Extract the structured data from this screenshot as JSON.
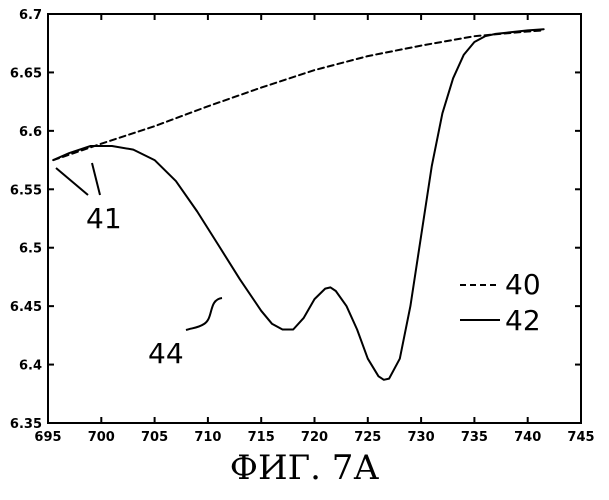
{
  "chart_data": {
    "type": "line",
    "title": "",
    "xlabel": "",
    "ylabel": "",
    "xlim": [
      695,
      745
    ],
    "ylim": [
      6.35,
      6.7
    ],
    "x_ticks": [
      695,
      700,
      705,
      710,
      715,
      720,
      725,
      730,
      735,
      740,
      745
    ],
    "y_ticks": [
      6.35,
      6.4,
      6.45,
      6.5,
      6.55,
      6.6,
      6.65,
      6.7
    ],
    "x_tick_labels": [
      "695",
      "700",
      "705",
      "710",
      "715",
      "720",
      "725",
      "730",
      "735",
      "740",
      "745"
    ],
    "y_tick_labels": [
      "6.35",
      "6.4",
      "6.45",
      "6.5",
      "6.55",
      "6.6",
      "6.65",
      "6.7"
    ],
    "grid": false,
    "series": [
      {
        "name": "40",
        "style": "dashed",
        "x": [
          695.5,
          700,
          705,
          710,
          715,
          720,
          725,
          730,
          735,
          740,
          741.5
        ],
        "y": [
          6.575,
          6.589,
          6.604,
          6.621,
          6.637,
          6.652,
          6.664,
          6.673,
          6.681,
          6.685,
          6.686
        ]
      },
      {
        "name": "42",
        "style": "solid",
        "x": [
          695.5,
          697,
          699,
          701,
          703,
          705,
          707,
          709,
          711,
          713,
          715,
          716,
          717,
          718,
          719,
          720,
          721,
          721.5,
          722,
          723,
          724,
          725,
          726,
          726.5,
          727,
          728,
          729,
          730,
          731,
          732,
          733,
          734,
          735,
          736,
          737,
          738,
          740,
          741.5
        ],
        "y": [
          6.575,
          6.581,
          6.587,
          6.587,
          6.584,
          6.575,
          6.557,
          6.531,
          6.502,
          6.473,
          6.446,
          6.435,
          6.43,
          6.43,
          6.44,
          6.456,
          6.465,
          6.466,
          6.463,
          6.45,
          6.43,
          6.405,
          6.39,
          6.387,
          6.388,
          6.405,
          6.45,
          6.51,
          6.57,
          6.615,
          6.645,
          6.665,
          6.676,
          6.681,
          6.683,
          6.684,
          6.686,
          6.687
        ]
      }
    ],
    "legend": {
      "placement": "right",
      "entries": [
        {
          "label": "40",
          "style": "dashed"
        },
        {
          "label": "42",
          "style": "solid"
        }
      ]
    },
    "annotations": [
      "41",
      "44"
    ],
    "caption": "ФИГ. 7А"
  }
}
